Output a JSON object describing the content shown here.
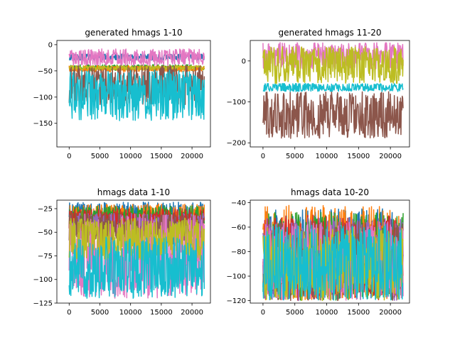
{
  "chart_data": [
    {
      "type": "line",
      "title": "generated hmags 1-10",
      "xlim": [
        -2000,
        23000
      ],
      "ylim": [
        -195,
        8
      ],
      "xticks": [
        0,
        5000,
        10000,
        15000,
        20000
      ],
      "xtick_labels": [
        "0",
        "5000",
        "10000",
        "15000",
        "20000"
      ],
      "yticks": [
        0,
        -50,
        -100,
        -150
      ],
      "ytick_labels": [
        "0",
        "−50",
        "−100",
        "−150"
      ],
      "grid": false,
      "series": [
        {
          "color": "#1f77b4",
          "band": [
            -30,
            -18
          ]
        },
        {
          "color": "#2ca02c",
          "band": [
            -50,
            -38
          ]
        },
        {
          "color": "#ff7f0e",
          "band": [
            -52,
            -40
          ]
        },
        {
          "color": "#bcbd22",
          "band": [
            -48,
            -40
          ]
        },
        {
          "color": "#e377c2",
          "band": [
            -40,
            -8
          ]
        },
        {
          "color": "#8c564b",
          "band": [
            -115,
            -40
          ]
        },
        {
          "color": "#17becf",
          "band": [
            -145,
            -48
          ]
        }
      ]
    },
    {
      "type": "line",
      "title": "generated hmags 11-20",
      "xlim": [
        -2000,
        23000
      ],
      "ylim": [
        -210,
        50
      ],
      "xticks": [
        0,
        5000,
        10000,
        15000,
        20000
      ],
      "xtick_labels": [
        "0",
        "5000",
        "10000",
        "15000",
        "20000"
      ],
      "yticks": [
        0,
        -100,
        -200
      ],
      "ytick_labels": [
        "0",
        "−100",
        "−200"
      ],
      "grid": false,
      "series": [
        {
          "color": "#e377c2",
          "band": [
            -20,
            45
          ]
        },
        {
          "color": "#8c564b",
          "band": [
            -190,
            -75
          ]
        },
        {
          "color": "#bcbd22",
          "band": [
            -55,
            35
          ]
        },
        {
          "color": "#17becf",
          "band": [
            -75,
            -55
          ]
        }
      ]
    },
    {
      "type": "line",
      "title": "hmags data 1-10",
      "xlim": [
        -2000,
        23000
      ],
      "ylim": [
        -125,
        -16
      ],
      "xticks": [
        0,
        5000,
        10000,
        15000,
        20000
      ],
      "xtick_labels": [
        "0",
        "5000",
        "10000",
        "15000",
        "20000"
      ],
      "yticks": [
        -25,
        -50,
        -75,
        -100,
        -125
      ],
      "ytick_labels": [
        "−25",
        "−50",
        "−75",
        "−100",
        "−125"
      ],
      "grid": false,
      "series": [
        {
          "color": "#1f77b4",
          "band": [
            -40,
            -18
          ]
        },
        {
          "color": "#ff7f0e",
          "band": [
            -45,
            -20
          ]
        },
        {
          "color": "#2ca02c",
          "band": [
            -50,
            -22
          ]
        },
        {
          "color": "#d62728",
          "band": [
            -55,
            -25
          ]
        },
        {
          "color": "#9467bd",
          "band": [
            -60,
            -30
          ]
        },
        {
          "color": "#8c564b",
          "band": [
            -65,
            -30
          ]
        },
        {
          "color": "#e377c2",
          "band": [
            -120,
            -30
          ]
        },
        {
          "color": "#bcbd22",
          "band": [
            -80,
            -35
          ]
        },
        {
          "color": "#17becf",
          "band": [
            -120,
            -55
          ]
        }
      ]
    },
    {
      "type": "line",
      "title": "hmags data 10-20",
      "xlim": [
        -2000,
        23000
      ],
      "ylim": [
        -122,
        -38
      ],
      "xticks": [
        0,
        5000,
        10000,
        15000,
        20000
      ],
      "xtick_labels": [
        "0",
        "5000",
        "10000",
        "15000",
        "20000"
      ],
      "yticks": [
        -40,
        -60,
        -80,
        -100,
        -120
      ],
      "ytick_labels": [
        "−40",
        "−60",
        "−80",
        "−100",
        "−120"
      ],
      "grid": false,
      "series": [
        {
          "color": "#1f77b4",
          "band": [
            -120,
            -45
          ]
        },
        {
          "color": "#ff7f0e",
          "band": [
            -120,
            -42
          ]
        },
        {
          "color": "#2ca02c",
          "band": [
            -120,
            -48
          ]
        },
        {
          "color": "#d62728",
          "band": [
            -120,
            -50
          ]
        },
        {
          "color": "#9467bd",
          "band": [
            -120,
            -52
          ]
        },
        {
          "color": "#8c564b",
          "band": [
            -120,
            -55
          ]
        },
        {
          "color": "#e377c2",
          "band": [
            -120,
            -55
          ]
        },
        {
          "color": "#bcbd22",
          "band": [
            -120,
            -60
          ]
        },
        {
          "color": "#17becf",
          "band": [
            -120,
            -58
          ]
        }
      ]
    }
  ]
}
